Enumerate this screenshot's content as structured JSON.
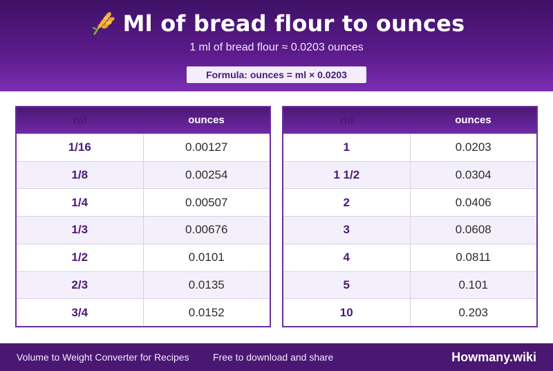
{
  "header": {
    "icon": "rice-plant-icon",
    "title": "Ml of bread flour to ounces",
    "subtitle": "1 ml of bread flour ≈ 0.0203 ounces",
    "formula": "Formula: ounces = ml × 0.0203"
  },
  "tables": {
    "left": {
      "columns": [
        "ml",
        "ounces"
      ],
      "rows": [
        [
          "1/16",
          "0.00127"
        ],
        [
          "1/8",
          "0.00254"
        ],
        [
          "1/4",
          "0.00507"
        ],
        [
          "1/3",
          "0.00676"
        ],
        [
          "1/2",
          "0.0101"
        ],
        [
          "2/3",
          "0.0135"
        ],
        [
          "3/4",
          "0.0152"
        ]
      ]
    },
    "right": {
      "columns": [
        "ml",
        "ounces"
      ],
      "rows": [
        [
          "1",
          "0.0203"
        ],
        [
          "1 1/2",
          "0.0304"
        ],
        [
          "2",
          "0.0406"
        ],
        [
          "3",
          "0.0608"
        ],
        [
          "4",
          "0.0811"
        ],
        [
          "5",
          "0.101"
        ],
        [
          "10",
          "0.203"
        ]
      ]
    }
  },
  "footer": {
    "left_text": "Volume to Weight Converter for Recipes",
    "middle_text": "Free to download and share",
    "brand": "Howmany.wiki"
  },
  "colors": {
    "header_dark": "#3f1166",
    "header_light": "#7b2eb3",
    "accent_text": "#4a1a78",
    "row_alt": "#f4f0fb",
    "footer_bg": "#4a1772"
  }
}
